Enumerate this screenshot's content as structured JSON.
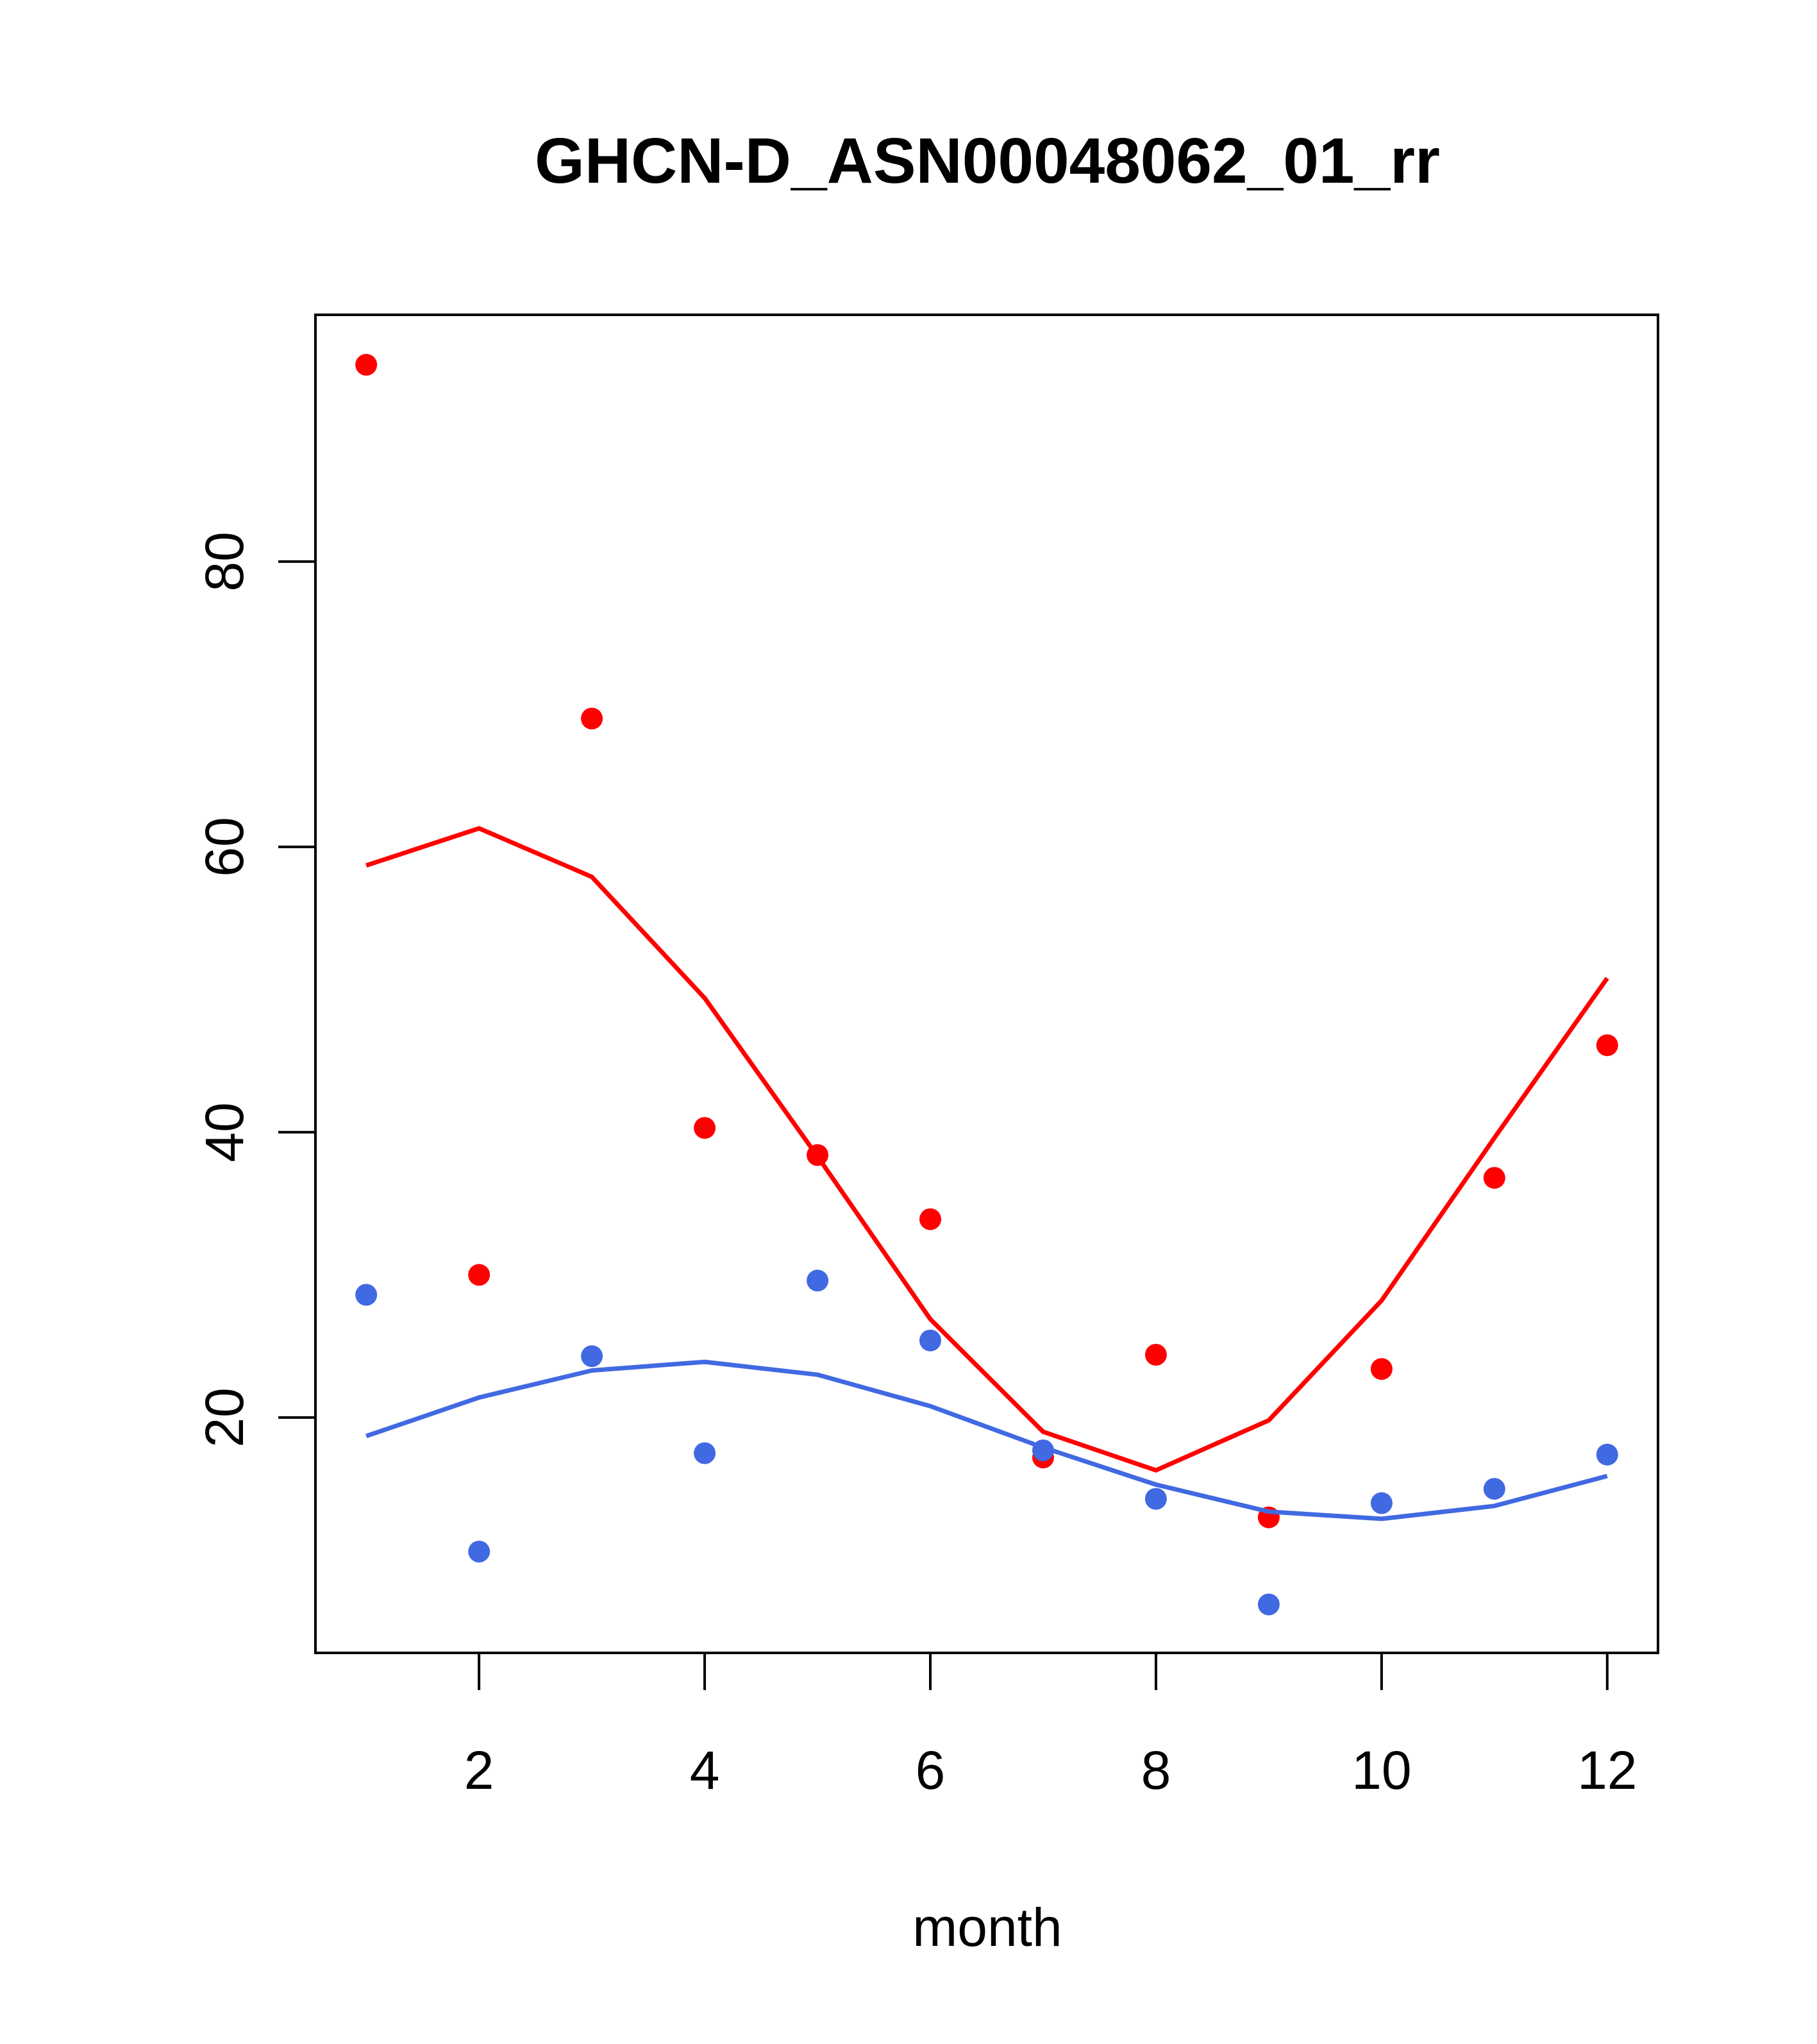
{
  "chart_data": {
    "type": "scatter",
    "title": "GHCN-D_ASN00048062_01_rr",
    "xlabel": "month",
    "ylabel": "",
    "xlim": [
      0.55,
      12.45
    ],
    "ylim": [
      3.5,
      97.3
    ],
    "xticks": [
      2,
      4,
      6,
      8,
      10,
      12
    ],
    "yticks": [
      20,
      40,
      60,
      80
    ],
    "grid": false,
    "legend": "none",
    "series": [
      {
        "color": "#ff0000",
        "points_x": [
          1,
          2,
          3,
          4,
          5,
          6,
          7,
          8,
          9,
          10,
          11,
          12
        ],
        "points_y": [
          93.8,
          30.0,
          69.0,
          40.3,
          38.4,
          33.9,
          17.2,
          24.4,
          13.0,
          23.4,
          36.8,
          46.1
        ],
        "line_x": [
          1,
          2,
          3,
          4,
          5,
          6,
          7,
          8,
          9,
          10,
          11,
          12
        ],
        "line_y": [
          58.7,
          61.3,
          57.9,
          49.4,
          38.3,
          26.9,
          19.0,
          16.3,
          19.8,
          28.2,
          39.6,
          50.8
        ]
      },
      {
        "color": "#4169e1",
        "points_x": [
          1,
          2,
          3,
          4,
          5,
          6,
          7,
          8,
          9,
          10,
          11,
          12
        ],
        "points_y": [
          28.6,
          10.6,
          24.3,
          17.5,
          29.6,
          25.4,
          17.7,
          14.3,
          6.9,
          14.0,
          15.0,
          17.4
        ],
        "line_x": [
          1,
          2,
          3,
          4,
          5,
          6,
          7,
          8,
          9,
          10,
          11,
          12
        ],
        "line_y": [
          18.7,
          21.4,
          23.3,
          23.9,
          23.0,
          20.8,
          17.9,
          15.3,
          13.4,
          12.9,
          13.8,
          15.9
        ]
      }
    ]
  }
}
